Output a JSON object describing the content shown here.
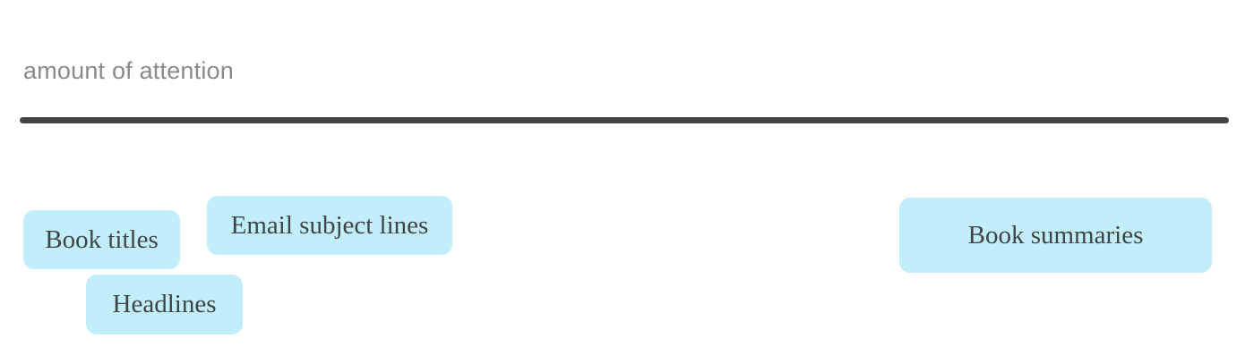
{
  "axis": {
    "label": "amount of attention"
  },
  "colors": {
    "axis_line": "#444444",
    "axis_label": "#8a8a8a",
    "tag_fill": "#c1eefa",
    "tag_text": "#3f4446"
  },
  "tags": {
    "book_titles": "Book titles",
    "email_subject_lines": "Email subject lines",
    "headlines": "Headlines",
    "book_summaries": "Book summaries"
  }
}
